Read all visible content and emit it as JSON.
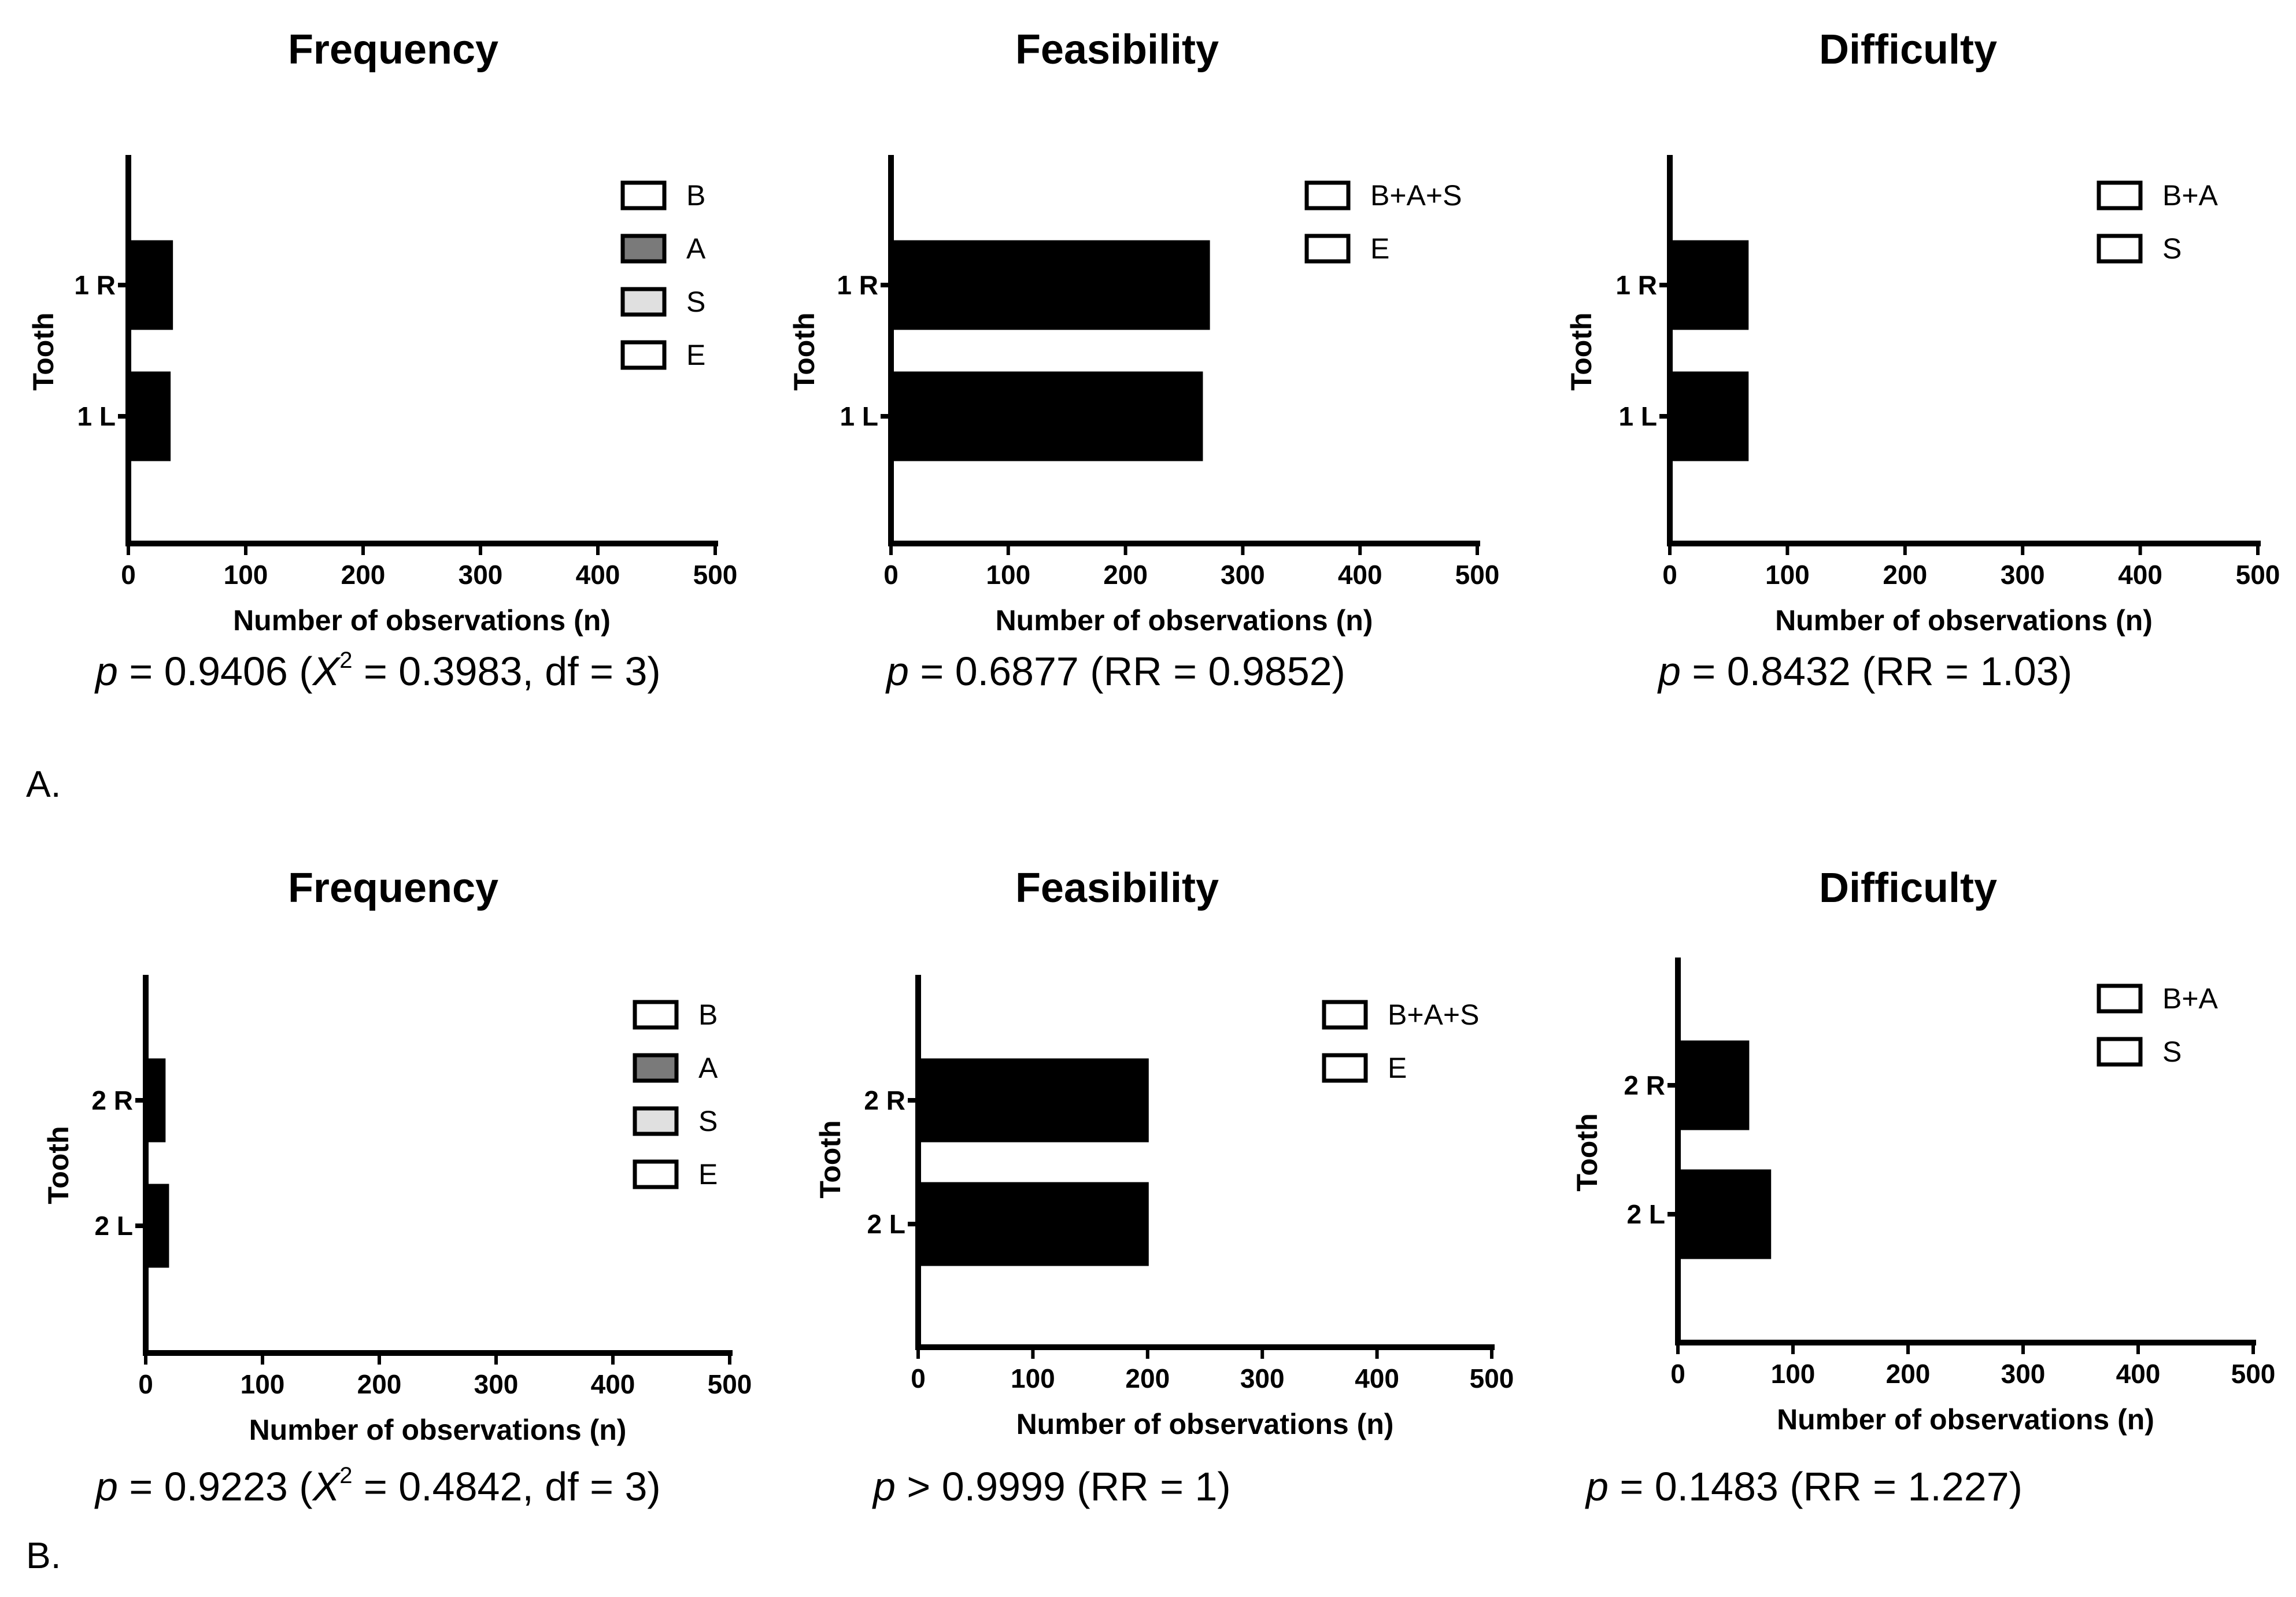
{
  "chart_data": [
    {
      "type": "bar",
      "orientation": "horizontal",
      "panel": "A",
      "position": "left",
      "title": "Frequency",
      "ylabel": "Tooth",
      "xlabel": "Number of observations (n)",
      "categories": [
        "1 R",
        "1 L"
      ],
      "values": [
        38,
        36
      ],
      "xlim": [
        0,
        500
      ],
      "xticks": [
        "0",
        "100",
        "200",
        "300",
        "400",
        "500"
      ],
      "legend": [
        {
          "label": "B",
          "color": "#ffffff"
        },
        {
          "label": "A",
          "color": "#7a7a7a"
        },
        {
          "label": "S",
          "color": "#e0e0e0"
        },
        {
          "label": "E",
          "color": "#ffffff"
        }
      ],
      "stat": {
        "p": "p",
        "pre": " = 0.9406 (",
        "x": "X",
        "sup": "2",
        "post": " = 0.3983, df = 3)"
      }
    },
    {
      "type": "bar",
      "orientation": "horizontal",
      "panel": "A",
      "position": "middle",
      "title": "Feasibility",
      "ylabel": "Tooth",
      "xlabel": "Number of observations (n)",
      "categories": [
        "1 R",
        "1 L"
      ],
      "values": [
        272,
        266
      ],
      "xlim": [
        0,
        500
      ],
      "xticks": [
        "0",
        "100",
        "200",
        "300",
        "400",
        "500"
      ],
      "legend": [
        {
          "label": "B+A+S",
          "color": "#ffffff"
        },
        {
          "label": "E",
          "color": "#ffffff"
        }
      ],
      "stat": {
        "p": "p",
        "rest": " = 0.6877 (RR = 0.9852)"
      }
    },
    {
      "type": "bar",
      "orientation": "horizontal",
      "panel": "A",
      "position": "right",
      "title": "Difficulty",
      "ylabel": "Tooth",
      "xlabel": "Number of observations (n)",
      "categories": [
        "1 R",
        "1 L"
      ],
      "values": [
        67,
        67
      ],
      "xlim": [
        0,
        500
      ],
      "xticks": [
        "0",
        "100",
        "200",
        "300",
        "400",
        "500"
      ],
      "legend": [
        {
          "label": "B+A",
          "color": "#ffffff"
        },
        {
          "label": "S",
          "color": "#ffffff"
        }
      ],
      "stat": {
        "p": "p",
        "rest": " = 0.8432 (RR = 1.03)"
      }
    },
    {
      "type": "bar",
      "orientation": "horizontal",
      "panel": "B",
      "position": "left",
      "title": "Frequency",
      "ylabel": "Tooth",
      "xlabel": "Number of observations (n)",
      "categories": [
        "2 R",
        "2 L"
      ],
      "values": [
        17,
        20
      ],
      "xlim": [
        0,
        500
      ],
      "xticks": [
        "0",
        "100",
        "200",
        "300",
        "400",
        "500"
      ],
      "legend": [
        {
          "label": "B",
          "color": "#ffffff"
        },
        {
          "label": "A",
          "color": "#7a7a7a"
        },
        {
          "label": "S",
          "color": "#e0e0e0"
        },
        {
          "label": "E",
          "color": "#ffffff"
        }
      ],
      "stat": {
        "p": "p",
        "pre": " = 0.9223 (",
        "x": "X",
        "sup": "2",
        "post": " = 0.4842, df = 3)"
      }
    },
    {
      "type": "bar",
      "orientation": "horizontal",
      "panel": "B",
      "position": "middle",
      "title": "Feasibility",
      "ylabel": "Tooth",
      "xlabel": "Number of observations (n)",
      "categories": [
        "2 R",
        "2 L"
      ],
      "values": [
        201,
        201
      ],
      "xlim": [
        0,
        500
      ],
      "xticks": [
        "0",
        "100",
        "200",
        "300",
        "400",
        "500"
      ],
      "legend": [
        {
          "label": "B+A+S",
          "color": "#ffffff"
        },
        {
          "label": "E",
          "color": "#ffffff"
        }
      ],
      "stat": {
        "p": "p",
        "rest": " > 0.9999 (RR = 1)"
      }
    },
    {
      "type": "bar",
      "orientation": "horizontal",
      "panel": "B",
      "position": "right",
      "title": "Difficulty",
      "ylabel": "Tooth",
      "xlabel": "Number of observations (n)",
      "categories": [
        "2 R",
        "2 L"
      ],
      "values": [
        62,
        81
      ],
      "xlim": [
        0,
        500
      ],
      "xticks": [
        "0",
        "100",
        "200",
        "300",
        "400",
        "500"
      ],
      "legend": [
        {
          "label": "B+A",
          "color": "#ffffff"
        },
        {
          "label": "S",
          "color": "#ffffff"
        }
      ],
      "stat": {
        "p": "p",
        "rest": " = 0.1483 (RR = 1.227)"
      }
    }
  ],
  "panel_labels": {
    "a": "A.",
    "b": "B."
  },
  "colors": {
    "bar": "#000000",
    "axis": "#000000"
  }
}
